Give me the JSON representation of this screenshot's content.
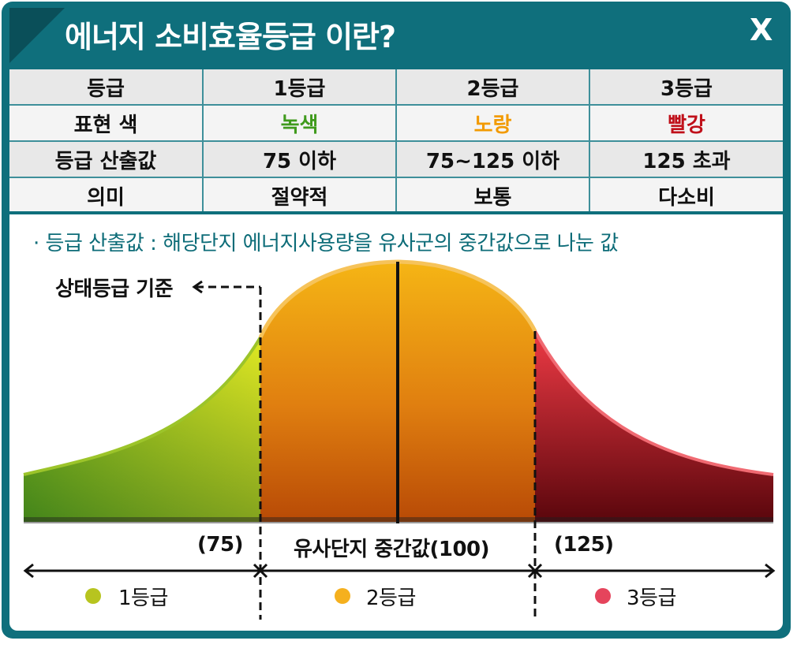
{
  "header": {
    "title": "에너지 소비효율등급 이란?",
    "close_label": "X"
  },
  "table": {
    "rows": [
      [
        "등급",
        "1등급",
        "2등급",
        "3등급"
      ],
      [
        "표현 색",
        "녹색",
        "노랑",
        "빨강"
      ],
      [
        "등급 산출값",
        "75 이하",
        "75~125 이하",
        "125 초과"
      ],
      [
        "의미",
        "절약적",
        "보통",
        "다소비"
      ]
    ]
  },
  "colors": {
    "accent": "#0f6f7c",
    "green_text": "#3f9a1c",
    "yellow_text": "#f29a00",
    "red_text": "#c0101a",
    "dot_green": "#b7c41f",
    "dot_yellow": "#f5b01e",
    "dot_red": "#e5445c"
  },
  "note": "· 등급 산출값 : 해당단지 에너지사용량을 유사군의 중간값으로 나눈 값",
  "diagram": {
    "baseline_label": "상태등급 기준",
    "left_threshold": "(75)",
    "median_label": "유사단지 중간값(100)",
    "right_threshold": "(125)",
    "grade1": "1등급",
    "grade2": "2등급",
    "grade3": "3등급"
  }
}
